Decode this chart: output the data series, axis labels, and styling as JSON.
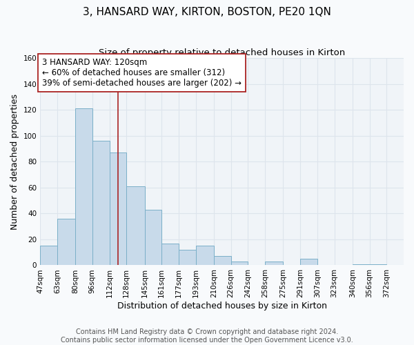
{
  "title": "3, HANSARD WAY, KIRTON, BOSTON, PE20 1QN",
  "subtitle": "Size of property relative to detached houses in Kirton",
  "xlabel": "Distribution of detached houses by size in Kirton",
  "ylabel": "Number of detached properties",
  "bar_values": [
    15,
    36,
    121,
    96,
    87,
    61,
    43,
    17,
    12,
    15,
    7,
    3,
    0,
    3,
    0,
    5,
    0,
    1
  ],
  "bar_left_edges": [
    47,
    63,
    80,
    96,
    112,
    128,
    145,
    161,
    177,
    193,
    210,
    226,
    242,
    258,
    275,
    291,
    307,
    340
  ],
  "bar_widths": [
    16,
    17,
    16,
    16,
    16,
    17,
    16,
    16,
    16,
    17,
    16,
    16,
    16,
    17,
    16,
    16,
    16,
    32
  ],
  "tick_labels": [
    "47sqm",
    "63sqm",
    "80sqm",
    "96sqm",
    "112sqm",
    "128sqm",
    "145sqm",
    "161sqm",
    "177sqm",
    "193sqm",
    "210sqm",
    "226sqm",
    "242sqm",
    "258sqm",
    "275sqm",
    "291sqm",
    "307sqm",
    "323sqm",
    "340sqm",
    "356sqm",
    "372sqm"
  ],
  "tick_positions": [
    47,
    63,
    80,
    96,
    112,
    128,
    145,
    161,
    177,
    193,
    210,
    226,
    242,
    258,
    275,
    291,
    307,
    323,
    340,
    356,
    372
  ],
  "bar_color": "#c8daea",
  "bar_edge_color": "#7aafc8",
  "vline_x": 120,
  "vline_color": "#aa2222",
  "annotation_text": "3 HANSARD WAY: 120sqm\n← 60% of detached houses are smaller (312)\n39% of semi-detached houses are larger (202) →",
  "annotation_box_color": "#ffffff",
  "annotation_box_edge": "#aa2222",
  "ylim": [
    0,
    160
  ],
  "yticks": [
    0,
    20,
    40,
    60,
    80,
    100,
    120,
    140,
    160
  ],
  "xlim_min": 47,
  "xlim_max": 388,
  "footer_line1": "Contains HM Land Registry data © Crown copyright and database right 2024.",
  "footer_line2": "Contains public sector information licensed under the Open Government Licence v3.0.",
  "bg_color": "#f8fafc",
  "plot_bg_color": "#f0f4f8",
  "grid_color": "#dde4ec",
  "title_fontsize": 11,
  "subtitle_fontsize": 9.5,
  "axis_label_fontsize": 9,
  "tick_fontsize": 7.5,
  "annotation_fontsize": 8.5,
  "footer_fontsize": 7
}
